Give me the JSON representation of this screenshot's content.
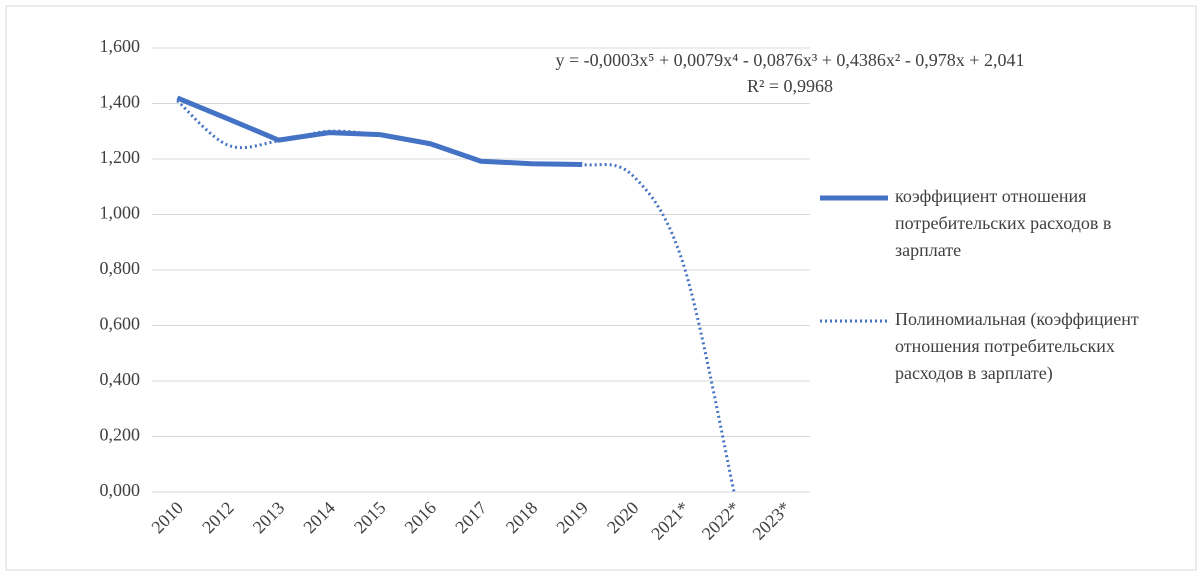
{
  "chart_data": {
    "type": "line",
    "categories": [
      "2010",
      "2012",
      "2013",
      "2014",
      "2015",
      "2016",
      "2017",
      "2018",
      "2019",
      "2020",
      "2021*",
      "2022*",
      "2023*"
    ],
    "series": [
      {
        "name": "коэффициент отношения потребительских расходов в зарплате",
        "color": "#4472c4",
        "style": "solid",
        "values": [
          1.42,
          1.345,
          1.268,
          1.295,
          1.288,
          1.255,
          1.192,
          1.183,
          1.18,
          null,
          null,
          null,
          null
        ]
      },
      {
        "name": "Полиномиальная (коэффициент отношения потребительских расходов в зарплате)",
        "color": "#4472c4",
        "style": "dotted",
        "values": [
          1.41,
          1.25,
          1.265,
          1.3,
          1.285,
          1.25,
          1.195,
          1.185,
          1.18,
          1.14,
          0.82,
          0.0,
          null
        ]
      }
    ],
    "annotations": [
      "y = -0,0003x⁵ + 0,0079x⁴ - 0,0876x³ + 0,4386x² - 0,978x + 2,041",
      "R² = 0,9968"
    ],
    "ylim": [
      0,
      1.6
    ],
    "yticks": [
      {
        "value": 0,
        "label": "0,000"
      },
      {
        "value": 0.2,
        "label": "0,200"
      },
      {
        "value": 0.4,
        "label": "0,400"
      },
      {
        "value": 0.6,
        "label": "0,600"
      },
      {
        "value": 0.8,
        "label": "0,800"
      },
      {
        "value": 1.0,
        "label": "1,000"
      },
      {
        "value": 1.2,
        "label": "1,200"
      },
      {
        "value": 1.4,
        "label": "1,400"
      },
      {
        "value": 1.6,
        "label": "1,600"
      }
    ],
    "grid": true,
    "legend": "right"
  }
}
